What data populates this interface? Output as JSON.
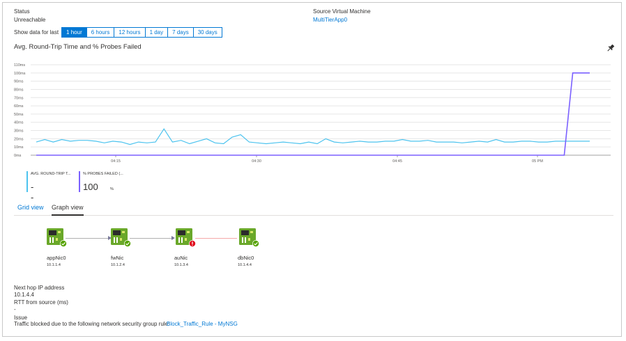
{
  "status": {
    "label": "Status",
    "value": "Unreachable"
  },
  "source_vm": {
    "label": "Source Virtual Machine",
    "value": "MultiTierApp0"
  },
  "time_range": {
    "caption": "Show data for last",
    "options": [
      "1 hour",
      "6 hours",
      "12 hours",
      "1 day",
      "7 days",
      "30 days"
    ],
    "selected": "1 hour"
  },
  "chart_title": "Avg. Round-Trip Time and % Probes Failed",
  "chart_data": {
    "type": "line",
    "y_ticks": [
      "110ms",
      "100ms",
      "90ms",
      "80ms",
      "70ms",
      "60ms",
      "50ms",
      "40ms",
      "30ms",
      "20ms",
      "10ms",
      "0ms"
    ],
    "ylim": [
      0,
      110
    ],
    "x_ticks": [
      "04:15",
      "04:30",
      "04:45",
      "05 PM"
    ],
    "series": [
      {
        "name": "AVG. ROUND-TRIP T...",
        "color": "#4cc3ee",
        "values": [
          16,
          19,
          16,
          19,
          17,
          18,
          18,
          17,
          15,
          17,
          16,
          13,
          16,
          15,
          16,
          32,
          16,
          18,
          14,
          17,
          20,
          15,
          14,
          22,
          25,
          16,
          15,
          14,
          15,
          16,
          15,
          14,
          16,
          14,
          20,
          16,
          15,
          16,
          17,
          16,
          16,
          17,
          17,
          19,
          17,
          17,
          18,
          16,
          16,
          16,
          15,
          16,
          17,
          16,
          19,
          16,
          16,
          17,
          17,
          16,
          16,
          17,
          17,
          17,
          17,
          17
        ]
      },
      {
        "name": "% PROBES FAILED (...",
        "color": "#7b61ff",
        "values": [
          0,
          0,
          0,
          0,
          0,
          0,
          0,
          0,
          0,
          0,
          0,
          0,
          0,
          0,
          0,
          0,
          0,
          0,
          0,
          0,
          0,
          0,
          0,
          0,
          0,
          0,
          0,
          0,
          0,
          0,
          0,
          0,
          0,
          0,
          0,
          0,
          0,
          0,
          0,
          0,
          0,
          0,
          0,
          0,
          0,
          0,
          0,
          0,
          0,
          0,
          0,
          0,
          0,
          0,
          0,
          0,
          0,
          0,
          0,
          0,
          0,
          0,
          0,
          100,
          100,
          100
        ]
      }
    ]
  },
  "legend": [
    {
      "name": "AVG. ROUND-TRIP T...",
      "value": "--",
      "unit": "",
      "color": "#4cc3ee"
    },
    {
      "name": "% PROBES FAILED (...",
      "value": "100",
      "unit": "%",
      "color": "#7b61ff"
    }
  ],
  "tabs": [
    "Grid view",
    "Graph view"
  ],
  "active_tab": "Graph view",
  "nodes": [
    {
      "name": "appNic0",
      "ip": "10.1.1.4",
      "status": "ok"
    },
    {
      "name": "fwNic",
      "ip": "10.1.2.4",
      "status": "ok"
    },
    {
      "name": "auNic",
      "ip": "10.1.3.4",
      "status": "error"
    },
    {
      "name": "dbNic0",
      "ip": "10.1.4.4",
      "status": "ok"
    }
  ],
  "details": {
    "next_hop_label": "Next hop IP address",
    "next_hop_value": "10.1.4.4",
    "rtt_label": "RTT from source (ms)",
    "rtt_value": "-",
    "issue_label": "Issue",
    "issue_text": "Traffic blocked due to the following network security group rule:",
    "issue_link": "Block_Traffic_Rule - MyNSG"
  },
  "icons": {
    "pin": "pin-icon",
    "nic": "network-interface-icon",
    "ok": "checkmark-badge-icon",
    "error": "error-badge-icon"
  }
}
